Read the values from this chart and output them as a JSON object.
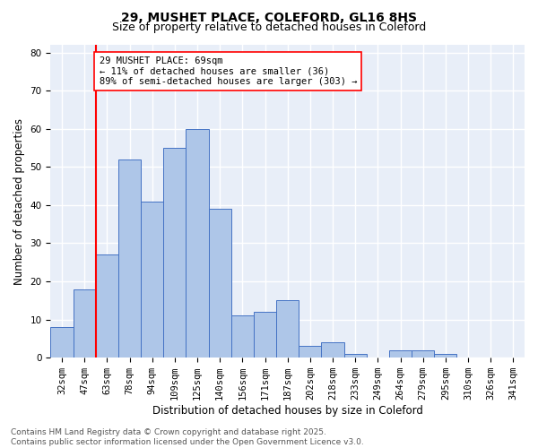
{
  "title_line1": "29, MUSHET PLACE, COLEFORD, GL16 8HS",
  "title_line2": "Size of property relative to detached houses in Coleford",
  "xlabel": "Distribution of detached houses by size in Coleford",
  "ylabel": "Number of detached properties",
  "bar_labels": [
    "32sqm",
    "47sqm",
    "63sqm",
    "78sqm",
    "94sqm",
    "109sqm",
    "125sqm",
    "140sqm",
    "156sqm",
    "171sqm",
    "187sqm",
    "202sqm",
    "218sqm",
    "233sqm",
    "249sqm",
    "264sqm",
    "279sqm",
    "295sqm",
    "310sqm",
    "326sqm",
    "341sqm"
  ],
  "bar_values": [
    8,
    18,
    27,
    52,
    41,
    55,
    60,
    39,
    11,
    12,
    15,
    3,
    4,
    1,
    0,
    2,
    2,
    1,
    0,
    0,
    0
  ],
  "bar_color": "#aec6e8",
  "bar_edge_color": "#4472c4",
  "background_color": "#e8eef8",
  "grid_color": "#ffffff",
  "annotation_text": "29 MUSHET PLACE: 69sqm\n← 11% of detached houses are smaller (36)\n89% of semi-detached houses are larger (303) →",
  "vline_color": "red",
  "annotation_box_edge": "red",
  "ylim": [
    0,
    82
  ],
  "yticks": [
    0,
    10,
    20,
    30,
    40,
    50,
    60,
    70,
    80
  ],
  "footer_line1": "Contains HM Land Registry data © Crown copyright and database right 2025.",
  "footer_line2": "Contains public sector information licensed under the Open Government Licence v3.0.",
  "title_fontsize": 10,
  "subtitle_fontsize": 9,
  "axis_label_fontsize": 8.5,
  "tick_fontsize": 7.5,
  "annotation_fontsize": 7.5,
  "footer_fontsize": 6.5
}
